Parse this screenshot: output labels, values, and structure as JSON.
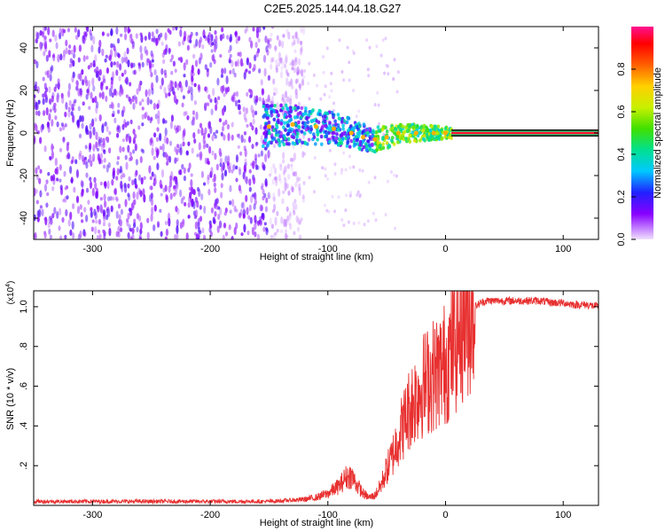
{
  "title": "C2E5.2025.144.04.18.G27",
  "chart_data": [
    {
      "type": "heatmap",
      "xlabel": "Height of straight line (km)",
      "ylabel": "Frequency (Hz)",
      "xlim": [
        -350,
        130
      ],
      "ylim": [
        -50,
        50
      ],
      "xticks": [
        -300,
        -200,
        -100,
        0,
        100
      ],
      "yticks": [
        -40,
        -20,
        0,
        20,
        40
      ],
      "colorbar": {
        "label": "Normalized spectral amplitude",
        "range": [
          0,
          1
        ],
        "ticks": [
          0.0,
          0.2,
          0.4,
          0.6,
          0.8
        ],
        "tick_labels": [
          "0.0",
          "0.2",
          "0.4",
          "0.6",
          "0.8"
        ]
      },
      "ridge": [
        {
          "x": -150,
          "y": 3
        },
        {
          "x": -130,
          "y": 4
        },
        {
          "x": -110,
          "y": 3
        },
        {
          "x": -95,
          "y": 2
        },
        {
          "x": -80,
          "y": 0
        },
        {
          "x": -70,
          "y": -2
        },
        {
          "x": -60,
          "y": -3
        },
        {
          "x": -50,
          "y": -2
        },
        {
          "x": -40,
          "y": 0
        },
        {
          "x": -25,
          "y": 0
        },
        {
          "x": -10,
          "y": 0
        },
        {
          "x": 0,
          "y": 0
        }
      ],
      "steady_band": {
        "x_start": 5,
        "x_end": 130,
        "y": 0
      }
    },
    {
      "type": "line",
      "xlabel": "Height of straight line (km)",
      "ylabel": "SNR (10 * v/v)",
      "yscale_label": "(x10",
      "yscale_exp": "4",
      "yscale_close": ")",
      "xlim": [
        -350,
        130
      ],
      "ylim": [
        0,
        1.08
      ],
      "xticks": [
        -300,
        -200,
        -100,
        0,
        100
      ],
      "yticks": [
        0.2,
        0.4,
        0.6,
        0.8,
        1.0
      ],
      "series": [
        {
          "color": "#e83030",
          "x": [
            -350,
            -300,
            -250,
            -200,
            -150,
            -120,
            -110,
            -100,
            -95,
            -90,
            -85,
            -80,
            -75,
            -70,
            -65,
            -60,
            -55,
            -50,
            -45,
            -40,
            -35,
            -30,
            -25,
            -20,
            -15,
            -10,
            -5,
            0,
            5,
            10,
            15,
            20,
            25,
            30,
            35,
            40,
            50,
            60,
            70,
            80,
            90,
            100,
            110,
            120,
            130
          ],
          "y": [
            0.02,
            0.02,
            0.02,
            0.02,
            0.02,
            0.03,
            0.04,
            0.06,
            0.08,
            0.1,
            0.14,
            0.15,
            0.1,
            0.06,
            0.04,
            0.05,
            0.1,
            0.18,
            0.25,
            0.35,
            0.42,
            0.5,
            0.55,
            0.6,
            0.63,
            0.66,
            0.68,
            0.72,
            0.78,
            0.85,
            0.92,
            0.97,
            1.0,
            1.02,
            1.03,
            1.03,
            1.03,
            1.03,
            1.03,
            1.03,
            1.02,
            1.02,
            1.01,
            1.01,
            1.0
          ]
        }
      ]
    }
  ]
}
